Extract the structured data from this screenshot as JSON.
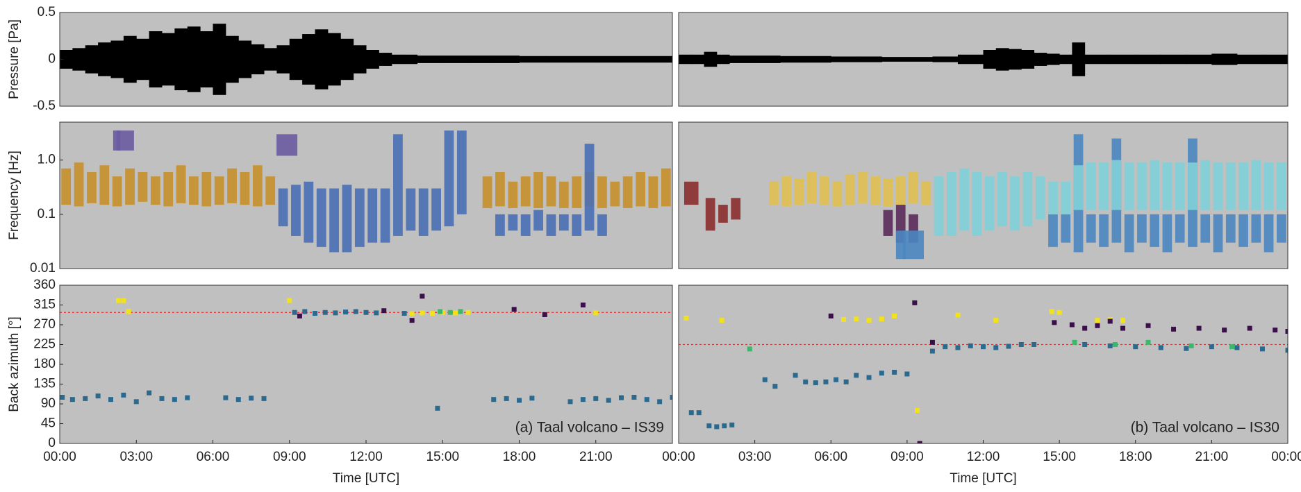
{
  "chart_data": [
    {
      "type": "area",
      "ylabel": "Pressure [Pa]",
      "xlim": [
        0,
        24
      ],
      "ylim": [
        -0.5,
        0.5
      ],
      "yticks": [
        0.5,
        0,
        -0.5
      ],
      "color": "#000000",
      "x": [
        0,
        0.5,
        1,
        1.5,
        2,
        2.5,
        3,
        3.5,
        4,
        4.5,
        5,
        5.5,
        6,
        6.5,
        7,
        7.5,
        8,
        8.5,
        9,
        9.5,
        10,
        10.5,
        11,
        11.5,
        12,
        12.5,
        13,
        13.5,
        14,
        15,
        16,
        17,
        18,
        19,
        20,
        21,
        22,
        23,
        24
      ],
      "values": [
        0.1,
        0.12,
        0.15,
        0.18,
        0.2,
        0.25,
        0.22,
        0.3,
        0.28,
        0.33,
        0.35,
        0.3,
        0.38,
        0.25,
        0.2,
        0.16,
        0.12,
        0.15,
        0.22,
        0.27,
        0.32,
        0.28,
        0.22,
        0.15,
        0.1,
        0.07,
        0.05,
        0.05,
        0.04,
        0.04,
        0.04,
        0.04,
        0.035,
        0.035,
        0.035,
        0.035,
        0.035,
        0.035,
        0.04
      ]
    },
    {
      "type": "area",
      "xlim": [
        0,
        24
      ],
      "ylim": [
        -0.5,
        0.5
      ],
      "color": "#000000",
      "x": [
        0,
        0.5,
        1,
        1.5,
        2,
        3,
        4,
        5,
        6,
        7,
        8,
        9,
        10,
        11,
        12,
        12.5,
        13,
        13.5,
        14,
        14.5,
        15,
        15.5,
        16,
        17,
        18,
        19,
        20,
        21,
        22,
        23,
        24
      ],
      "values": [
        0.05,
        0.05,
        0.08,
        0.05,
        0.04,
        0.04,
        0.035,
        0.035,
        0.03,
        0.03,
        0.025,
        0.025,
        0.03,
        0.05,
        0.1,
        0.12,
        0.11,
        0.1,
        0.07,
        0.06,
        0.05,
        0.18,
        0.05,
        0.05,
        0.05,
        0.05,
        0.05,
        0.06,
        0.05,
        0.05,
        0.06
      ]
    },
    {
      "type": "range",
      "ylabel": "Frequency [Hz]",
      "log": true,
      "xlim": [
        0,
        24
      ],
      "ylim": [
        0.01,
        5
      ],
      "yticks": [
        0.01,
        0.1,
        {
          "value": 1,
          "label": "1.0"
        }
      ],
      "series": [
        {
          "color": "#c8902a",
          "x": [
            0.25,
            0.75,
            1.25,
            1.75,
            2.25,
            2.75,
            3.25,
            3.75,
            4.25,
            4.75,
            5.25,
            5.75,
            6.25,
            6.75,
            7.25,
            7.75,
            8.25
          ],
          "low": [
            0.15,
            0.14,
            0.16,
            0.15,
            0.14,
            0.15,
            0.17,
            0.15,
            0.14,
            0.16,
            0.15,
            0.14,
            0.15,
            0.16,
            0.15,
            0.14,
            0.15
          ],
          "high": [
            0.7,
            0.9,
            0.6,
            0.8,
            0.5,
            0.7,
            0.6,
            0.5,
            0.6,
            0.8,
            0.5,
            0.6,
            0.5,
            0.7,
            0.6,
            0.8,
            0.5
          ]
        },
        {
          "color": "#c8902a",
          "x": [
            16.75,
            17.25,
            17.75,
            18.25,
            18.75,
            19.25,
            19.75,
            20.25,
            20.75,
            21.25,
            21.75,
            22.25,
            22.75,
            23.25,
            23.75
          ],
          "low": [
            0.13,
            0.14,
            0.13,
            0.14,
            0.13,
            0.14,
            0.13,
            0.13,
            0.14,
            0.13,
            0.14,
            0.13,
            0.14,
            0.13,
            0.14
          ],
          "high": [
            0.5,
            0.6,
            0.4,
            0.5,
            0.6,
            0.5,
            0.4,
            0.5,
            0.6,
            0.5,
            0.4,
            0.5,
            0.6,
            0.5,
            0.7
          ]
        },
        {
          "color": "#6a5aa0",
          "x": [
            2.3,
            2.5,
            8.9
          ],
          "low": [
            1.5,
            1.5,
            1.2
          ],
          "high": [
            3.5,
            3.5,
            3
          ]
        },
        {
          "color": "#4a6fb5",
          "x": [
            8.75,
            9.25,
            9.75,
            10.25,
            10.75,
            11.25,
            11.75,
            12.25,
            12.75,
            13.25,
            13.75,
            14.25,
            14.75,
            15.25,
            15.75
          ],
          "low": [
            0.06,
            0.04,
            0.03,
            0.025,
            0.02,
            0.02,
            0.025,
            0.03,
            0.03,
            0.04,
            0.05,
            0.04,
            0.05,
            0.06,
            0.1
          ],
          "high": [
            0.3,
            0.35,
            0.4,
            0.3,
            0.3,
            0.35,
            0.3,
            0.3,
            0.3,
            3,
            0.3,
            0.3,
            0.3,
            3.5,
            3.5
          ]
        },
        {
          "color": "#4a6fb5",
          "x": [
            17.25,
            17.75,
            18.25,
            18.75,
            19.25,
            19.75,
            20.25,
            20.75,
            21.25
          ],
          "low": [
            0.04,
            0.05,
            0.04,
            0.05,
            0.04,
            0.05,
            0.04,
            0.05,
            0.04
          ],
          "high": [
            0.1,
            0.1,
            0.1,
            0.12,
            0.1,
            0.1,
            0.1,
            2,
            0.1
          ]
        }
      ]
    },
    {
      "type": "range",
      "log": true,
      "xlim": [
        0,
        24
      ],
      "ylim": [
        0.01,
        5
      ],
      "series": [
        {
          "color": "#8b2e2e",
          "x": [
            0.5,
            1.25,
            1.75,
            2.25
          ],
          "low": [
            0.15,
            0.05,
            0.07,
            0.08
          ],
          "high": [
            0.4,
            0.2,
            0.15,
            0.2
          ]
        },
        {
          "color": "#e0c050",
          "x": [
            3.75,
            4.25,
            4.75,
            5.25,
            5.75,
            6.25,
            6.75,
            7.25,
            7.75,
            8.25,
            8.75,
            9.25,
            9.75
          ],
          "low": [
            0.15,
            0.14,
            0.15,
            0.16,
            0.15,
            0.14,
            0.15,
            0.16,
            0.15,
            0.14,
            0.15,
            0.16,
            0.15
          ],
          "high": [
            0.4,
            0.5,
            0.45,
            0.6,
            0.5,
            0.4,
            0.55,
            0.6,
            0.5,
            0.45,
            0.5,
            0.6,
            0.4
          ]
        },
        {
          "color": "#5a2a5a",
          "x": [
            8.25,
            8.75,
            9.25
          ],
          "low": [
            0.04,
            0.03,
            0.03
          ],
          "high": [
            0.12,
            0.15,
            0.1
          ]
        },
        {
          "color": "#4a86c0",
          "x": [
            8.75,
            9.25,
            14.75,
            15.25,
            15.75,
            16.25,
            16.75,
            17.25,
            17.75,
            18.25,
            18.75,
            19.25,
            19.75,
            20.25,
            20.75,
            21.25,
            21.75,
            22.25,
            22.75,
            23.25,
            23.75
          ],
          "low": [
            0.015,
            0.015,
            0.025,
            0.03,
            0.02,
            0.03,
            0.025,
            0.03,
            0.02,
            0.03,
            0.025,
            0.02,
            0.03,
            0.025,
            0.03,
            0.02,
            0.03,
            0.025,
            0.03,
            0.02,
            0.03
          ],
          "high": [
            0.05,
            0.05,
            0.1,
            0.1,
            3,
            0.1,
            0.1,
            2.5,
            0.1,
            0.1,
            0.1,
            0.1,
            0.1,
            2.5,
            0.1,
            0.1,
            0.1,
            0.1,
            0.1,
            0.1,
            0.1
          ]
        },
        {
          "color": "#7fd0d8",
          "x": [
            10.25,
            10.75,
            11.25,
            11.75,
            12.25,
            12.75,
            13.25,
            13.75,
            14.25,
            14.75,
            15.25,
            15.75,
            16.25,
            16.75,
            17.25,
            17.75,
            18.25,
            18.75,
            19.25,
            19.75,
            20.25,
            20.75,
            21.25,
            21.75,
            22.25,
            22.75,
            23.25,
            23.75
          ],
          "low": [
            0.04,
            0.04,
            0.05,
            0.04,
            0.05,
            0.06,
            0.05,
            0.06,
            0.08,
            0.1,
            0.1,
            0.12,
            0.12,
            0.12,
            0.12,
            0.12,
            0.12,
            0.12,
            0.12,
            0.12,
            0.12,
            0.12,
            0.12,
            0.12,
            0.12,
            0.12,
            0.12,
            0.12
          ],
          "high": [
            0.5,
            0.6,
            0.7,
            0.6,
            0.5,
            0.6,
            0.5,
            0.6,
            0.5,
            0.4,
            0.4,
            0.8,
            0.9,
            0.9,
            1,
            0.9,
            0.9,
            1,
            0.9,
            0.9,
            0.9,
            1,
            0.9,
            0.9,
            0.9,
            1,
            0.9,
            0.9
          ]
        }
      ]
    },
    {
      "type": "scatter",
      "ylabel": "Back azimuth [°]",
      "xlabel": "Time [UTC]",
      "annotation": "(a) Taal volcano – IS39",
      "reference": 298,
      "reference_color": "#e03030",
      "xlim": [
        0,
        24
      ],
      "xticks": [
        {
          "value": 0,
          "label": "00:00"
        },
        {
          "value": 3,
          "label": "03:00"
        },
        {
          "value": 6,
          "label": "06:00"
        },
        {
          "value": 9,
          "label": "09:00"
        },
        {
          "value": 12,
          "label": "12:00"
        },
        {
          "value": 15,
          "label": "15:00"
        },
        {
          "value": 18,
          "label": "18:00"
        },
        {
          "value": 21,
          "label": "21:00"
        }
      ],
      "ylim": [
        0,
        360
      ],
      "yticks": [
        0,
        45,
        90,
        135,
        180,
        225,
        270,
        315,
        360
      ],
      "series": [
        {
          "color": "#2b6a8e",
          "x": [
            0.1,
            0.5,
            1,
            1.5,
            2,
            2.5,
            3,
            3.5,
            4,
            4.5,
            5,
            6.5,
            7,
            7.5,
            8,
            9.2,
            9.6,
            10,
            10.4,
            10.8,
            11.2,
            11.6,
            12,
            12.4,
            13.5,
            14.8,
            17,
            17.5,
            18,
            18.5,
            20,
            20.5,
            21,
            21.5,
            22,
            22.5,
            23,
            23.5,
            24
          ],
          "y": [
            105,
            100,
            102,
            108,
            100,
            110,
            95,
            115,
            102,
            100,
            104,
            104,
            100,
            103,
            102,
            298,
            300,
            296,
            298,
            297,
            299,
            300,
            298,
            297,
            296,
            80,
            100,
            102,
            98,
            103,
            95,
            100,
            102,
            98,
            104,
            105,
            100,
            95,
            105
          ]
        },
        {
          "color": "#f2e21c",
          "x": [
            2.3,
            2.5,
            2.7,
            9.0,
            13.8,
            14.2,
            14.6,
            15.0,
            15.5,
            16.0,
            21.0
          ],
          "y": [
            325,
            325,
            300,
            325,
            295,
            297,
            296,
            298,
            297,
            298,
            297
          ]
        },
        {
          "color": "#3cb86c",
          "x": [
            14.9,
            15.3,
            15.7
          ],
          "y": [
            300,
            298,
            300
          ]
        },
        {
          "color": "#3a0f4a",
          "x": [
            9.4,
            12.7,
            13.8,
            14.2,
            17.8,
            19,
            20.5
          ],
          "y": [
            290,
            302,
            280,
            335,
            305,
            293,
            315
          ]
        }
      ]
    },
    {
      "type": "scatter",
      "xlabel": "Time [UTC]",
      "annotation": "(b) Taal volcano – IS30",
      "reference": 225,
      "reference_color": "#e03030",
      "xlim": [
        0,
        24
      ],
      "xticks": [
        {
          "value": 0,
          "label": "00:00"
        },
        {
          "value": 3,
          "label": "03:00"
        },
        {
          "value": 6,
          "label": "06:00"
        },
        {
          "value": 9,
          "label": "09:00"
        },
        {
          "value": 12,
          "label": "12:00"
        },
        {
          "value": 15,
          "label": "15:00"
        },
        {
          "value": 18,
          "label": "18:00"
        },
        {
          "value": 21,
          "label": "21:00"
        },
        {
          "value": 24,
          "label": "00:00"
        }
      ],
      "ylim": [
        0,
        360
      ],
      "series": [
        {
          "color": "#2b6a8e",
          "x": [
            0.5,
            0.8,
            1.2,
            1.5,
            1.8,
            2.1,
            3.4,
            3.8,
            4.6,
            5,
            5.4,
            5.8,
            6.2,
            6.6,
            7,
            7.5,
            8,
            8.5,
            9,
            10,
            10.5,
            11,
            11.5,
            12,
            12.5,
            13,
            13.5,
            14,
            16,
            17,
            18,
            19,
            20,
            21,
            22,
            23,
            24
          ],
          "y": [
            70,
            70,
            40,
            38,
            40,
            42,
            145,
            130,
            155,
            140,
            138,
            140,
            145,
            140,
            155,
            150,
            160,
            162,
            158,
            210,
            220,
            218,
            222,
            220,
            218,
            221,
            225,
            225,
            225,
            222,
            220,
            218,
            216,
            220,
            218,
            215,
            212
          ]
        },
        {
          "color": "#f2e21c",
          "x": [
            0.3,
            1.7,
            6.5,
            7,
            7.5,
            8,
            8.5,
            9.4,
            11,
            12.5,
            14.7,
            15,
            16.5,
            17,
            17.5
          ],
          "y": [
            285,
            280,
            282,
            283,
            280,
            283,
            290,
            75,
            292,
            280,
            300,
            298,
            280,
            282,
            280
          ]
        },
        {
          "color": "#3cb86c",
          "x": [
            2.8,
            15.6,
            17.2,
            18.5,
            20.2,
            21.8
          ],
          "y": [
            215,
            230,
            225,
            230,
            222,
            220
          ]
        },
        {
          "color": "#3a0f4a",
          "x": [
            6,
            9.3,
            9.5,
            10,
            14.8,
            15.5,
            16,
            16.5,
            17,
            17.5,
            18.5,
            19.5,
            20.5,
            21.5,
            22.5,
            23.5,
            24
          ],
          "y": [
            290,
            320,
            0,
            230,
            275,
            270,
            262,
            268,
            278,
            262,
            268,
            260,
            262,
            258,
            262,
            258,
            255
          ]
        }
      ]
    }
  ]
}
